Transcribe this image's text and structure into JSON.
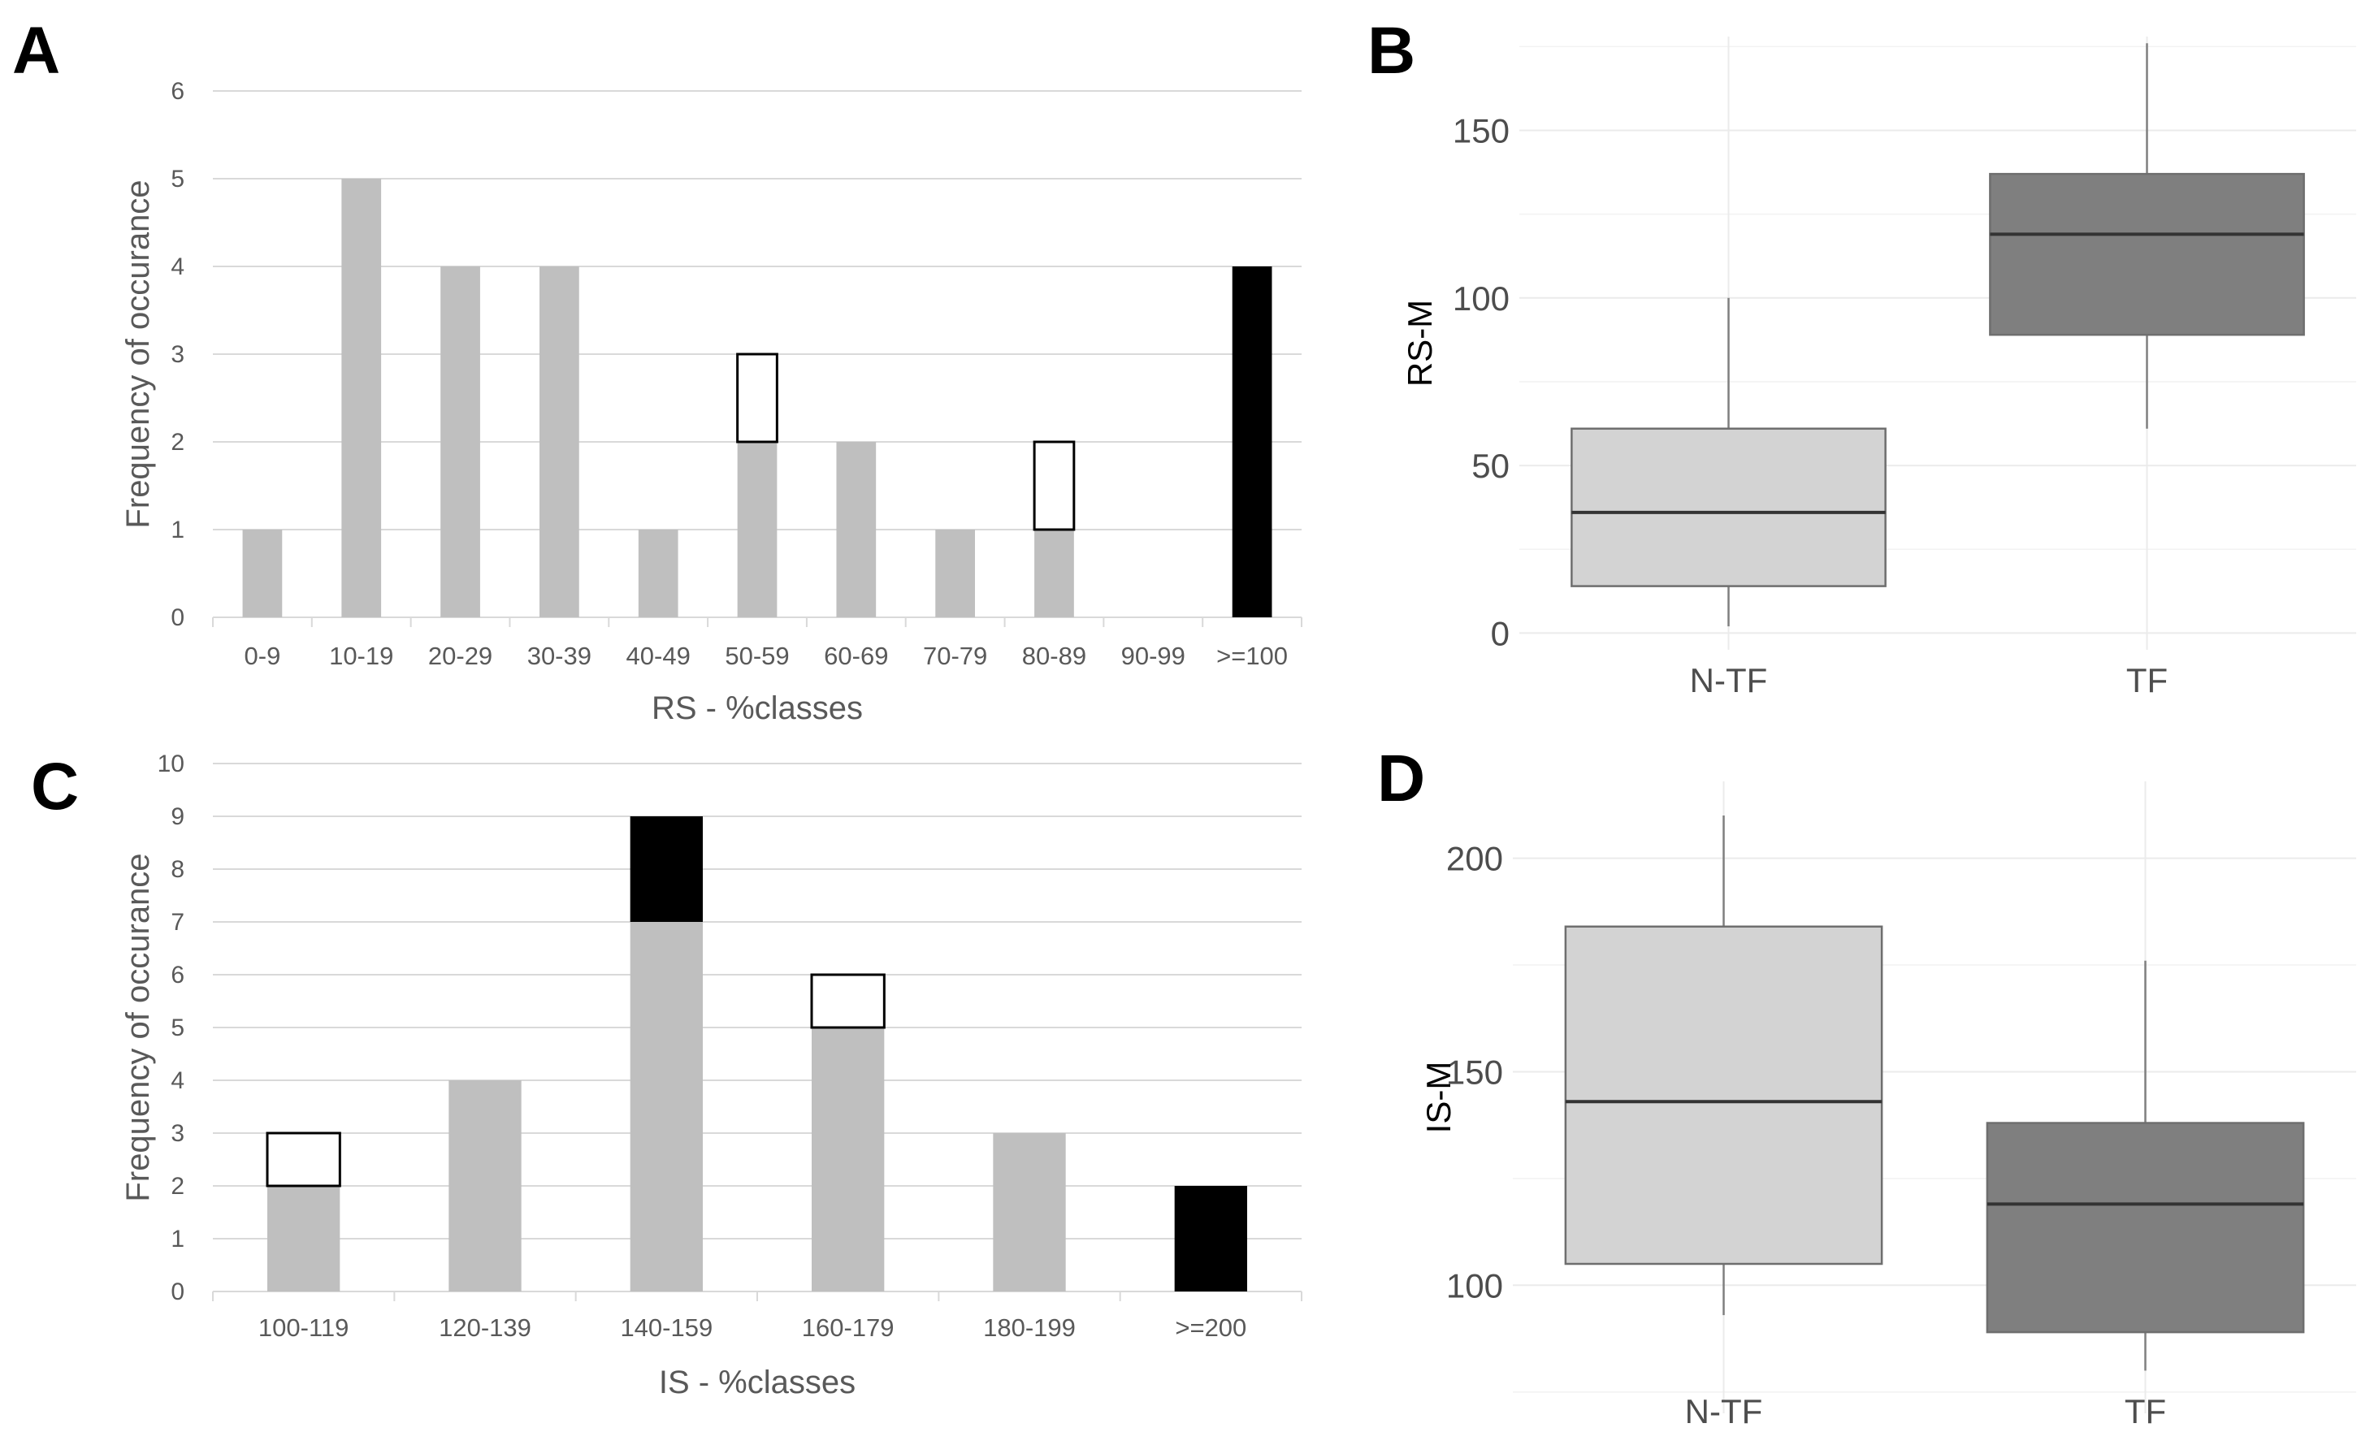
{
  "chart_data": [
    {
      "panel": "A",
      "type": "bar",
      "stacked": true,
      "xlabel": "RS - %classes",
      "ylabel": "Frequency of occurance",
      "ylim": [
        0,
        6
      ],
      "yticks": [
        0,
        1,
        2,
        3,
        4,
        5,
        6
      ],
      "categories": [
        "0-9",
        "10-19",
        "20-29",
        "30-39",
        "40-49",
        "50-59",
        "60-69",
        "70-79",
        "80-89",
        "90-99",
        ">=100"
      ],
      "series": [
        {
          "name": "grey",
          "color": "#bfbfbf",
          "values": [
            1,
            5,
            4,
            4,
            1,
            2,
            2,
            1,
            1,
            0,
            0
          ]
        },
        {
          "name": "white",
          "color": "#ffffff",
          "outline": "#000000",
          "values": [
            0,
            0,
            0,
            0,
            0,
            1,
            0,
            0,
            1,
            0,
            0
          ]
        },
        {
          "name": "black",
          "color": "#000000",
          "values": [
            0,
            0,
            0,
            0,
            0,
            0,
            0,
            0,
            0,
            0,
            4
          ]
        }
      ],
      "grid": true
    },
    {
      "panel": "B",
      "type": "boxplot",
      "ylabel": "RS-M",
      "ylim": [
        -5,
        178
      ],
      "yticks": [
        0,
        50,
        100,
        150
      ],
      "categories": [
        "N-TF",
        "TF"
      ],
      "boxes": [
        {
          "name": "N-TF",
          "color": "#d3d3d3",
          "min": 2,
          "q1": 14,
          "median": 36,
          "q3": 61,
          "max": 100
        },
        {
          "name": "TF",
          "color": "#7f7f7f",
          "min": 61,
          "q1": 89,
          "median": 119,
          "q3": 137,
          "max": 176
        }
      ],
      "grid": true
    },
    {
      "panel": "C",
      "type": "bar",
      "stacked": true,
      "xlabel": "IS - %classes",
      "ylabel": "Frequency of occurance",
      "ylim": [
        0,
        10
      ],
      "yticks": [
        0,
        1,
        2,
        3,
        4,
        5,
        6,
        7,
        8,
        9,
        10
      ],
      "categories": [
        "100-119",
        "120-139",
        "140-159",
        "160-179",
        "180-199",
        ">=200"
      ],
      "series": [
        {
          "name": "grey",
          "color": "#bfbfbf",
          "values": [
            2,
            4,
            7,
            5,
            3,
            0
          ]
        },
        {
          "name": "white",
          "color": "#ffffff",
          "outline": "#000000",
          "values": [
            1,
            0,
            0,
            1,
            0,
            0
          ]
        },
        {
          "name": "black",
          "color": "#000000",
          "values": [
            0,
            0,
            2,
            0,
            0,
            2
          ]
        }
      ],
      "grid": true
    },
    {
      "panel": "D",
      "type": "boxplot",
      "ylabel": "IS-M",
      "ylim": [
        70,
        218
      ],
      "yticks": [
        100,
        150,
        200
      ],
      "categories": [
        "N-TF",
        "TF"
      ],
      "boxes": [
        {
          "name": "N-TF",
          "color": "#d3d3d3",
          "min": 93,
          "q1": 105,
          "median": 143,
          "q3": 184,
          "max": 210
        },
        {
          "name": "TF",
          "color": "#7f7f7f",
          "min": 80,
          "q1": 89,
          "median": 119,
          "q3": 138,
          "max": 176
        }
      ],
      "grid": true
    }
  ]
}
